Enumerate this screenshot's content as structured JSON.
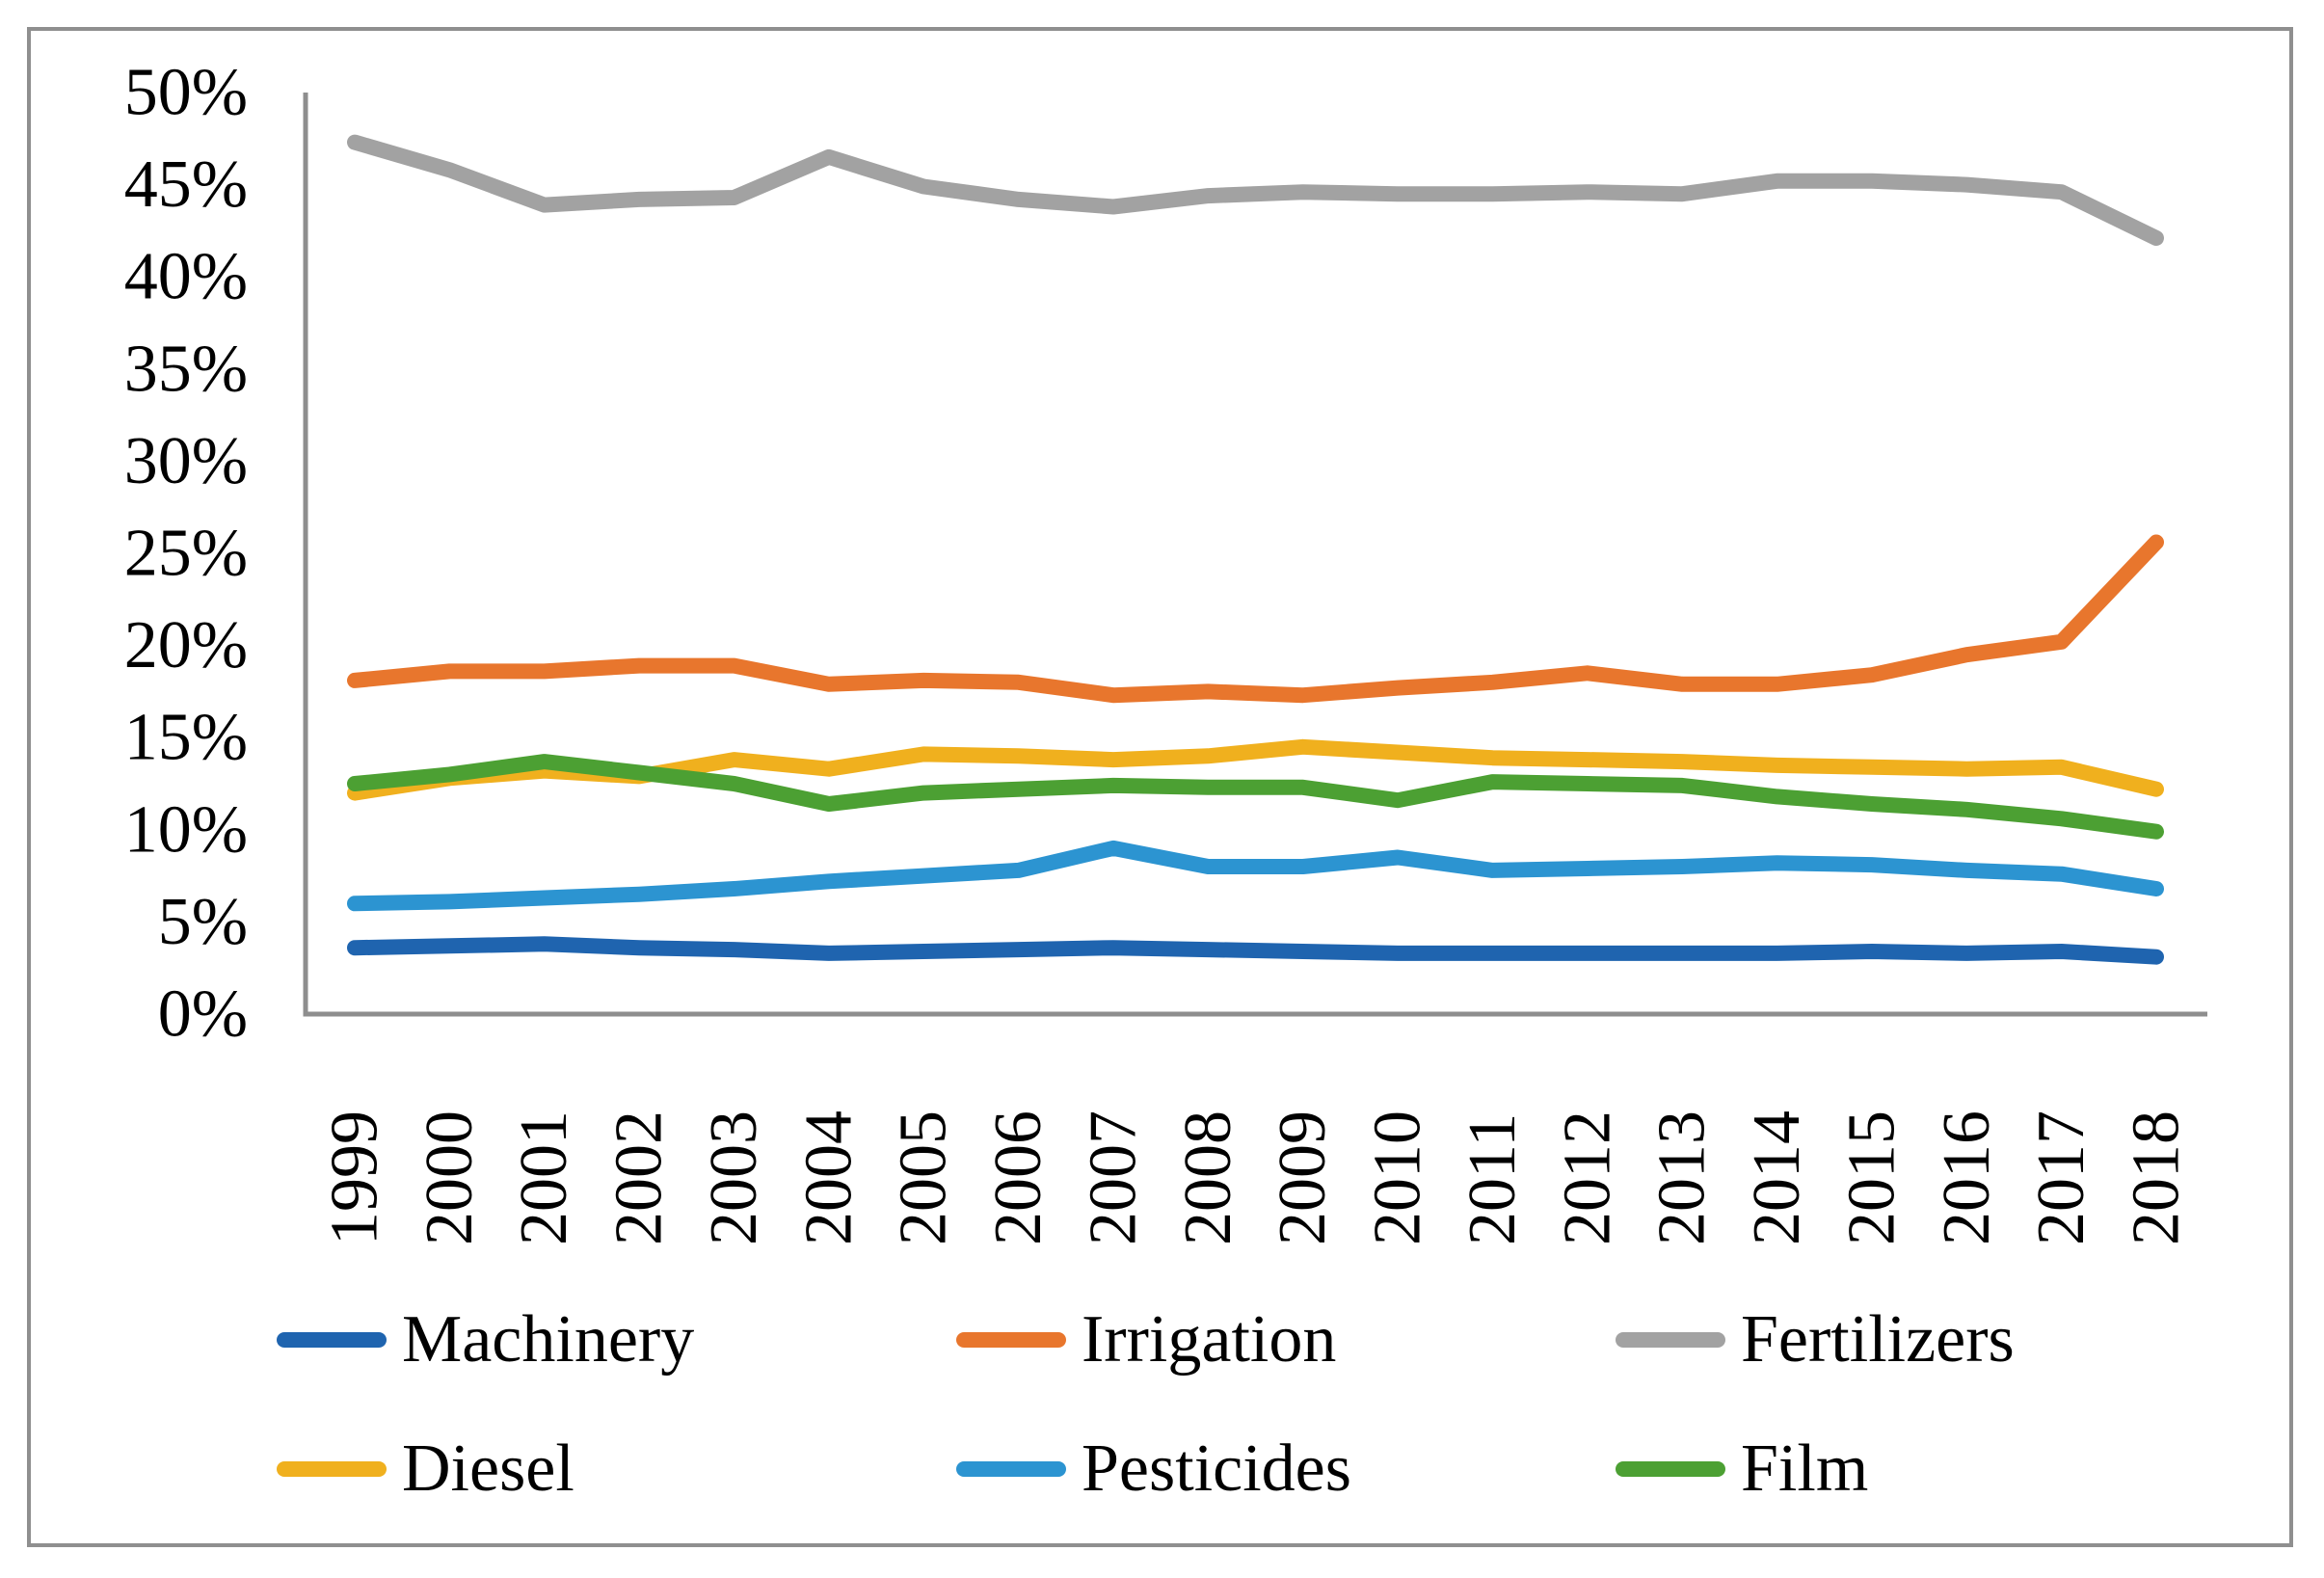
{
  "figure": {
    "background": "#FFFFFF",
    "border_color": "#8F8F8F",
    "axis_color": "#8E8E8E",
    "text_color": "#000000"
  },
  "chart_data": {
    "type": "line",
    "title": "",
    "xlabel": "",
    "ylabel": "",
    "grid": false,
    "legend_position": "bottom",
    "categories": [
      "1999",
      "2000",
      "2001",
      "2002",
      "2003",
      "2004",
      "2005",
      "2006",
      "2007",
      "2008",
      "2009",
      "2010",
      "2011",
      "2012",
      "2013",
      "2014",
      "2015",
      "2016",
      "2017",
      "2018"
    ],
    "y_axis": {
      "min": 0,
      "max": 50,
      "step": 5,
      "unit": "%",
      "tick_labels": [
        "0%",
        "5%",
        "10%",
        "15%",
        "20%",
        "25%",
        "30%",
        "35%",
        "40%",
        "45%",
        "50%"
      ]
    },
    "series": [
      {
        "name": "Machinery",
        "color": "#1F64AF",
        "values": [
          3.6,
          3.7,
          3.8,
          3.6,
          3.5,
          3.3,
          3.4,
          3.5,
          3.6,
          3.5,
          3.4,
          3.3,
          3.3,
          3.3,
          3.3,
          3.3,
          3.4,
          3.3,
          3.4,
          3.1
        ]
      },
      {
        "name": "Irrigation",
        "color": "#E8762D",
        "values": [
          18.1,
          18.6,
          18.6,
          18.9,
          18.9,
          17.9,
          18.1,
          18.0,
          17.3,
          17.5,
          17.3,
          17.7,
          18.0,
          18.5,
          17.9,
          17.9,
          18.4,
          19.5,
          20.2,
          25.6
        ]
      },
      {
        "name": "Fertilizers",
        "color": "#A2A2A2",
        "values": [
          47.3,
          45.8,
          43.9,
          44.2,
          44.3,
          46.5,
          44.9,
          44.2,
          43.8,
          44.4,
          44.6,
          44.5,
          44.5,
          44.6,
          44.5,
          45.2,
          45.2,
          45.0,
          44.6,
          42.1
        ]
      },
      {
        "name": "Diesel",
        "color": "#F0B01E",
        "values": [
          12.0,
          12.8,
          13.2,
          12.9,
          13.8,
          13.3,
          14.1,
          14.0,
          13.8,
          14.0,
          14.5,
          14.2,
          13.9,
          13.8,
          13.7,
          13.5,
          13.4,
          13.3,
          13.4,
          12.2
        ]
      },
      {
        "name": "Pesticides",
        "color": "#2C94D1",
        "values": [
          6.0,
          6.1,
          6.3,
          6.5,
          6.8,
          7.2,
          7.5,
          7.8,
          9.0,
          8.0,
          8.0,
          8.5,
          7.8,
          7.9,
          8.0,
          8.2,
          8.1,
          7.8,
          7.6,
          6.8
        ]
      },
      {
        "name": "Film",
        "color": "#4CA033",
        "values": [
          12.5,
          13.0,
          13.7,
          13.1,
          12.5,
          11.4,
          12.0,
          12.2,
          12.4,
          12.3,
          12.3,
          11.6,
          12.6,
          12.5,
          12.4,
          11.8,
          11.4,
          11.1,
          10.6,
          9.9
        ]
      }
    ]
  }
}
